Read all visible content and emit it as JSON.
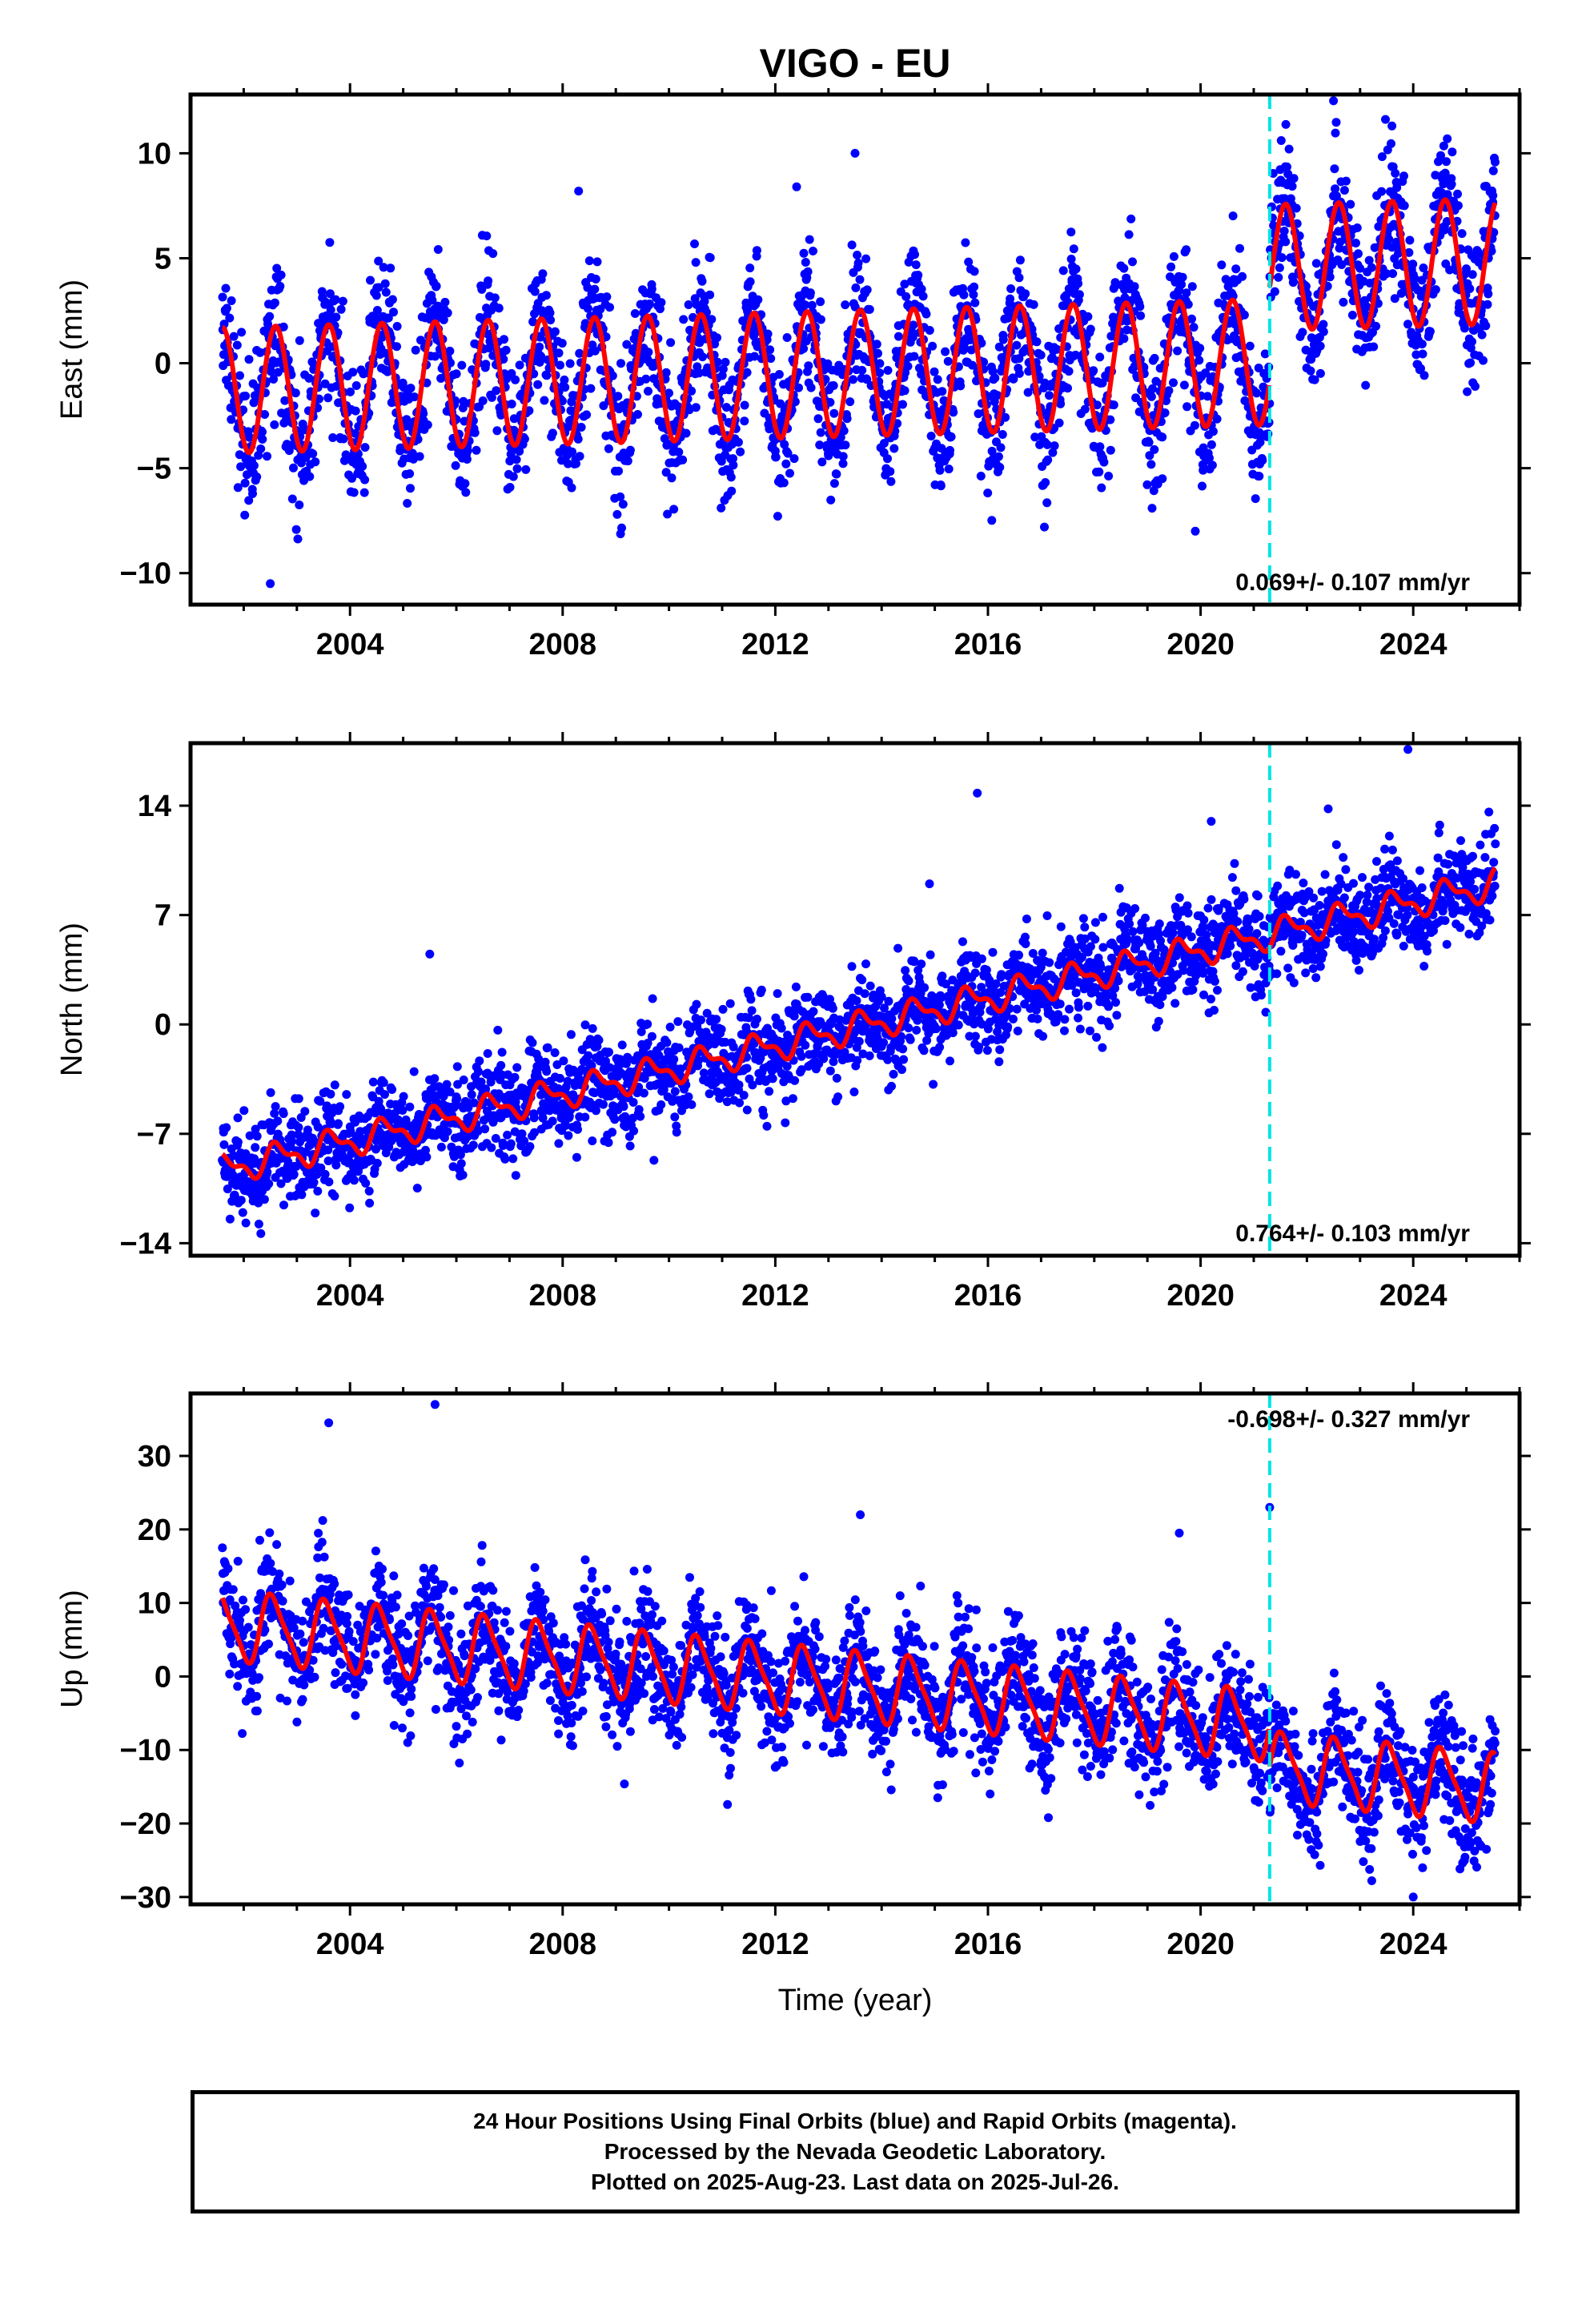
{
  "title": "VIGO - EU",
  "footer": {
    "lines": [
      "24 Hour Positions Using Final Orbits (blue) and Rapid Orbits (magenta).",
      "Processed by the Nevada Geodetic Laboratory.",
      "Plotted on 2025-Aug-23. Last data on 2025-Jul-26."
    ]
  },
  "colors": {
    "data": "#0000ff",
    "model": "#ff0000",
    "break_line": "#00e5e5",
    "frame": "#000000"
  },
  "chart_data": [
    {
      "type": "scatter",
      "component": "east",
      "ylabel": "East (mm)",
      "xlabel": "",
      "xlim": [
        2001.0,
        2026.0
      ],
      "ylim": [
        -11.5,
        12.8
      ],
      "xticks": [
        2004,
        2008,
        2012,
        2016,
        2020,
        2024
      ],
      "yticks": [
        -10,
        -5,
        0,
        5,
        10
      ],
      "rate_text": "0.069+/- 0.107 mm/yr",
      "rate_position": "bottom-right",
      "equipment_change": 2021.3,
      "series": [
        {
          "model": {
            "start": 2001.6,
            "end": 2025.55,
            "offset": -1.3,
            "slope": 0.069,
            "annual_amp": 3.0,
            "annual_phase": 0.65,
            "semi_amp": 0.0,
            "steps": [
              {
                "t": 2021.3,
                "size": 4.5
              }
            ]
          },
          "scatter": {
            "spread": 1.6,
            "outliers": [
              [
                2002.5,
                -10.5
              ],
              [
                2008.3,
                8.2
              ],
              [
                2012.4,
                8.4
              ],
              [
                2013.5,
                10.0
              ],
              [
                2022.5,
                12.5
              ],
              [
                2023.6,
                11.3
              ],
              [
                2019.9,
                -8.0
              ]
            ]
          }
        }
      ]
    },
    {
      "type": "scatter",
      "component": "north",
      "ylabel": "North (mm)",
      "xlabel": "",
      "xlim": [
        2001.0,
        2026.0
      ],
      "ylim": [
        -14.8,
        18.0
      ],
      "xticks": [
        2004,
        2008,
        2012,
        2016,
        2020,
        2024
      ],
      "yticks": [
        -14,
        -7,
        0,
        7,
        14
      ],
      "rate_text": "0.764+/- 0.103 mm/yr",
      "rate_position": "bottom-right",
      "equipment_change": 2021.3,
      "series": [
        {
          "model": {
            "start": 2001.6,
            "end": 2025.55,
            "offset": -9.3,
            "slope": 0.764,
            "annual_amp": 0.8,
            "annual_phase": 0.6,
            "semi_amp": 0.4,
            "steps": []
          },
          "scatter": {
            "spread": 1.5,
            "outliers": [
              [
                2015.8,
                14.8
              ],
              [
                2023.9,
                17.6
              ],
              [
                2005.5,
                4.5
              ],
              [
                2014.9,
                9.0
              ],
              [
                2020.2,
                13.0
              ],
              [
                2022.4,
                13.8
              ]
            ]
          }
        }
      ]
    },
    {
      "type": "scatter",
      "component": "up",
      "ylabel": "Up (mm)",
      "xlabel": "Time (year)",
      "xlim": [
        2001.0,
        2026.0
      ],
      "ylim": [
        -31.0,
        38.5
      ],
      "xticks": [
        2004,
        2008,
        2012,
        2016,
        2020,
        2024
      ],
      "yticks": [
        -30,
        -20,
        -10,
        0,
        10,
        20,
        30
      ],
      "rate_text": "-0.698+/- 0.327 mm/yr",
      "rate_position": "top-right",
      "equipment_change": 2021.3,
      "series": [
        {
          "model": {
            "start": 2001.6,
            "end": 2025.55,
            "offset": 7.0,
            "slope": -0.698,
            "annual_amp": 4.5,
            "annual_phase": 0.7,
            "semi_amp": 1.0,
            "steps": [
              {
                "t": 2021.3,
                "size": -5.5
              }
            ]
          },
          "scatter": {
            "spread": 4.0,
            "outliers": [
              [
                2003.6,
                34.5
              ],
              [
                2005.6,
                37.0
              ],
              [
                2021.3,
                23.0
              ],
              [
                2019.6,
                19.5
              ],
              [
                2024.0,
                -30.0
              ],
              [
                2013.6,
                22.0
              ]
            ]
          }
        }
      ]
    }
  ]
}
